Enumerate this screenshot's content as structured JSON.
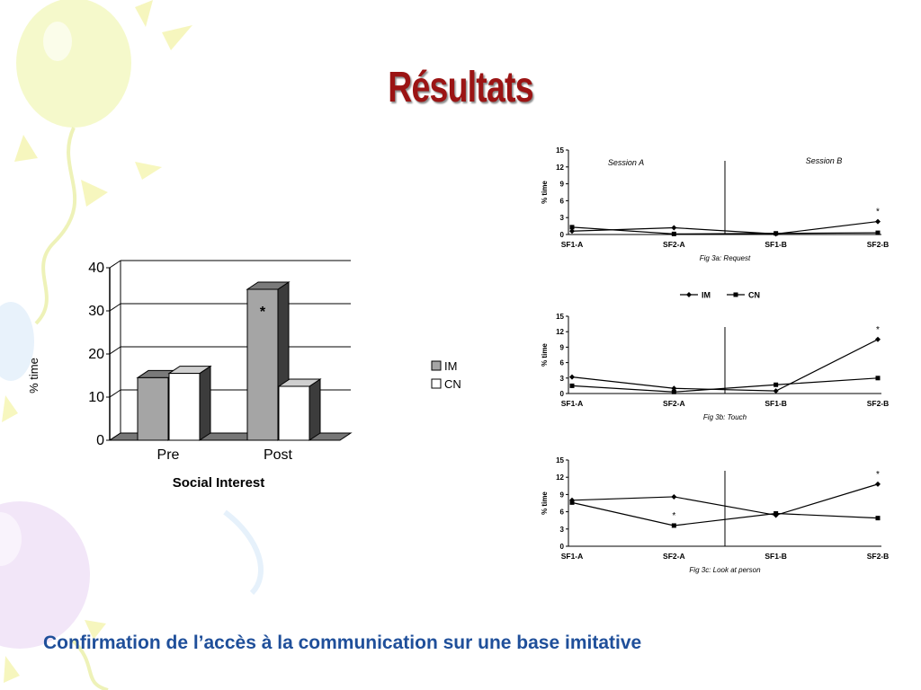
{
  "slide": {
    "title": "Résultats",
    "caption": "Confirmation de l’accès à  la communication sur une base imitative"
  },
  "colors": {
    "title": "#9b1414",
    "caption": "#1f4f9a",
    "bar_im": "#a5a5a5",
    "bar_cn": "#ffffff"
  },
  "chart_data": [
    {
      "type": "bar",
      "title": "",
      "xlabel": "Social Interest",
      "ylabel": "% time",
      "categories": [
        "Pre",
        "Post"
      ],
      "series": [
        {
          "name": "IM",
          "values": [
            14.5,
            35
          ]
        },
        {
          "name": "CN",
          "values": [
            15.5,
            12.5
          ]
        }
      ],
      "ylim": [
        0,
        40
      ],
      "yticks": [
        "0",
        "10",
        "20",
        "30",
        "40"
      ],
      "annotations": [
        {
          "category": "Post",
          "series": "IM",
          "text": "*"
        }
      ],
      "grid": true,
      "legend": "right"
    },
    {
      "type": "line",
      "title": "Fig 3a: Request",
      "ylabel": "% time",
      "categories": [
        "SF1-A",
        "SF2-A",
        "SF1-B",
        "SF2-B"
      ],
      "yticks": [
        "0",
        "3",
        "6",
        "9",
        "12",
        "15"
      ],
      "ylim": [
        0,
        15
      ],
      "series": [
        {
          "name": "IM",
          "marker": "diamond",
          "values": [
            0.6,
            1.2,
            0.1,
            2.3
          ]
        },
        {
          "name": "CN",
          "marker": "square",
          "values": [
            1.3,
            0.1,
            0.2,
            0.3
          ]
        }
      ],
      "sessions": [
        "Session A",
        "Session B"
      ],
      "annotations": [
        {
          "point": "SF2-B",
          "series": "IM",
          "text": "*"
        }
      ],
      "grid": false
    },
    {
      "type": "line",
      "title": "Fig 3b: Touch",
      "ylabel": "% time",
      "categories": [
        "SF1-A",
        "SF2-A",
        "SF1-B",
        "SF2-B"
      ],
      "yticks": [
        "0",
        "3",
        "6",
        "9",
        "12",
        "15"
      ],
      "ylim": [
        0,
        15
      ],
      "series": [
        {
          "name": "IM",
          "marker": "diamond",
          "values": [
            3.2,
            1.0,
            0.5,
            10.5
          ]
        },
        {
          "name": "CN",
          "marker": "square",
          "values": [
            1.5,
            0.3,
            1.7,
            3.0
          ]
        }
      ],
      "legend_labels": [
        "IM",
        "CN"
      ],
      "annotations": [
        {
          "point": "SF2-B",
          "series": "IM",
          "text": "*"
        }
      ],
      "grid": false
    },
    {
      "type": "line",
      "title": "Fig 3c: Look at person",
      "ylabel": "% time",
      "categories": [
        "SF1-A",
        "SF2-A",
        "SF1-B",
        "SF2-B"
      ],
      "yticks": [
        "0",
        "3",
        "6",
        "9",
        "12",
        "15"
      ],
      "ylim": [
        0,
        15
      ],
      "series": [
        {
          "name": "IM",
          "marker": "diamond",
          "values": [
            8.0,
            8.6,
            5.4,
            10.8
          ]
        },
        {
          "name": "CN",
          "marker": "square",
          "values": [
            7.6,
            3.6,
            5.7,
            4.9
          ]
        }
      ],
      "annotations": [
        {
          "point": "SF2-A",
          "series": "CN",
          "text": "*"
        },
        {
          "point": "SF2-B",
          "series": "IM",
          "text": "*"
        }
      ],
      "grid": false
    }
  ]
}
